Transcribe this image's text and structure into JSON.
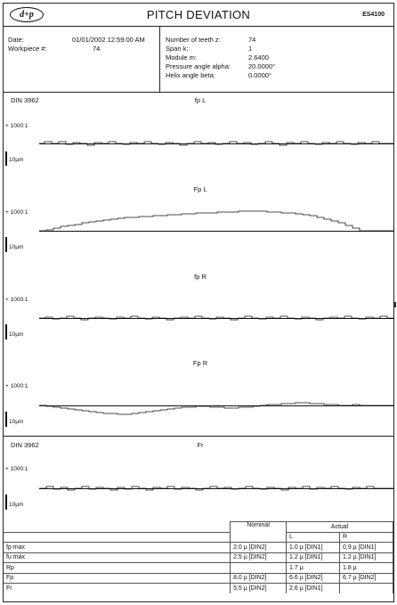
{
  "header": {
    "logo": "d+p",
    "title": "PITCH DEVIATION",
    "model": "ES4100"
  },
  "info": {
    "date_label": "Date:",
    "date_value": "01/01/2002 12:59:00 AM",
    "workpiece_label": "Workpiece #:",
    "workpiece_value": "74",
    "teeth_label": "Number of teeth z:",
    "teeth_value": "74",
    "span_label": "Span k:",
    "span_value": "1",
    "module_label": "Module m:",
    "module_value": "2.6400",
    "pressure_label": "Pressure angle alpha:",
    "pressure_value": "20.0000°",
    "helix_label": "Helix angle beta:",
    "helix_value": "0.0000°"
  },
  "graphs": {
    "standard_1": "DIN 3962",
    "standard_2": "DIN 3962",
    "scale": "+ 1000:1",
    "unit": "10µm",
    "plots": [
      {
        "title": "fp  L"
      },
      {
        "title": "Fp  L"
      },
      {
        "title": "fp  R"
      },
      {
        "title": "Fp  R"
      },
      {
        "title": "Fr"
      }
    ]
  },
  "table": {
    "col_nominal": "Nominal",
    "col_actual": "Actual",
    "col_l": "L",
    "col_r": "R",
    "rows": [
      {
        "label": "fp max",
        "nominal": "2.0 µ [DIN2]",
        "l": "1.0 µ [DIN1]",
        "r": "0.9 µ [DIN1]"
      },
      {
        "label": "fu max",
        "nominal": "2.5 µ [DIN2]",
        "l": "1.2 µ [DIN1]",
        "r": "1.2 µ [DIN1]"
      },
      {
        "label": "Rp",
        "nominal": "",
        "l": "1.7 µ",
        "r": "1.8 µ"
      },
      {
        "label": "Fp",
        "nominal": "8.0 µ [DIN2]",
        "l": "6.6 µ [DIN2]",
        "r": "6.7 µ [DIN2]"
      },
      {
        "label": "Fr",
        "nominal": "5.5 µ [DIN2]",
        "l": "2.6 µ [DIN1]",
        "r": ""
      }
    ]
  }
}
